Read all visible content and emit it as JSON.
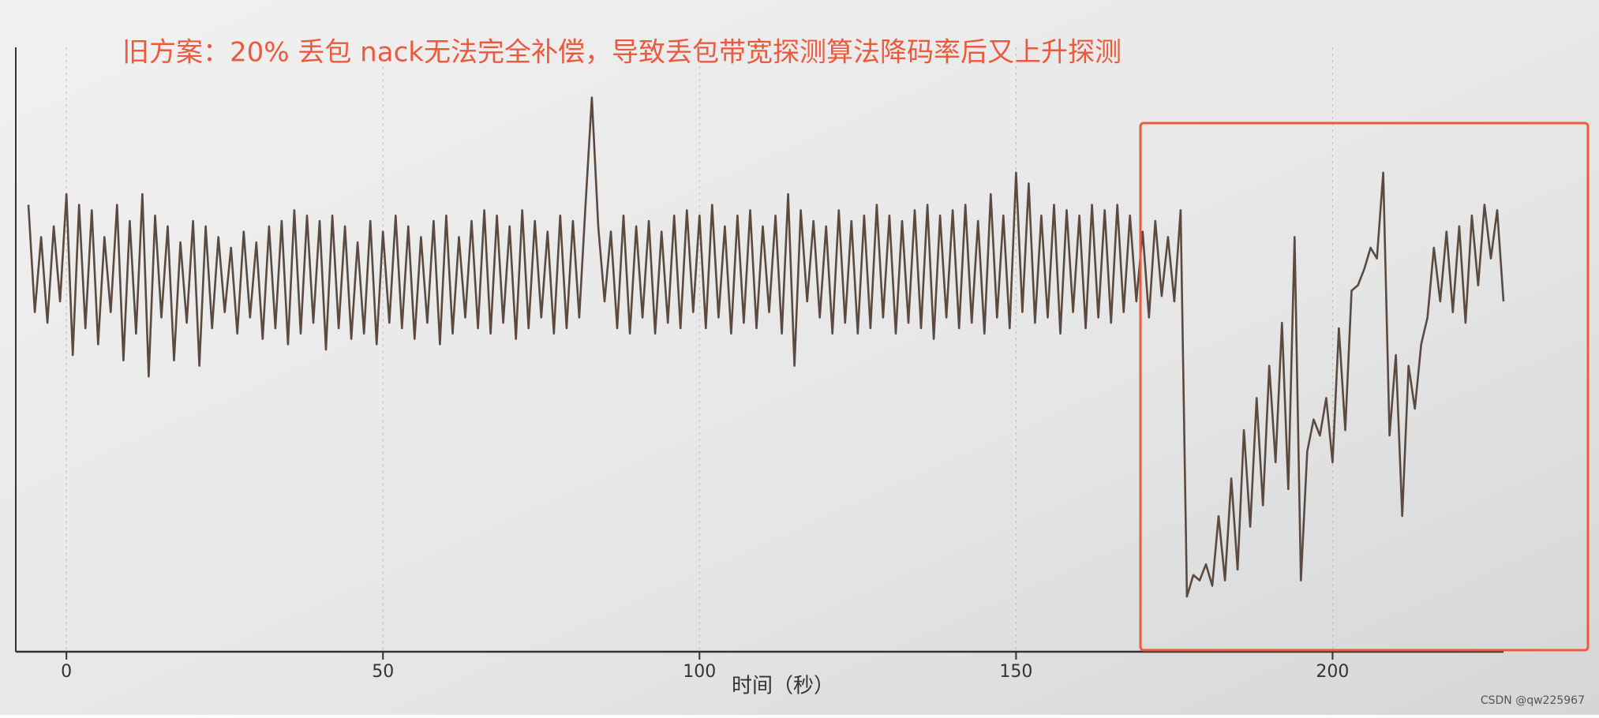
{
  "chart_data": {
    "type": "line",
    "annotation": "旧方案：20% 丢包 nack无法完全补偿，导致丢包带宽探测算法降码率后又上升探测",
    "xlabel": "时间（秒）",
    "watermark": "CSDN @qw225967",
    "xlim": [
      -8,
      227
    ],
    "xticks": [
      0,
      50,
      100,
      150,
      200
    ],
    "ylim": [
      0,
      100
    ],
    "grid": true,
    "series": [
      {
        "color": "#5a4a40",
        "x": [
          -6,
          -5,
          -4,
          -3,
          -2,
          -1,
          0,
          1,
          2,
          3,
          4,
          5,
          6,
          7,
          8,
          9,
          10,
          11,
          12,
          13,
          14,
          15,
          16,
          17,
          18,
          19,
          20,
          21,
          22,
          23,
          24,
          25,
          26,
          27,
          28,
          29,
          30,
          31,
          32,
          33,
          34,
          35,
          36,
          37,
          38,
          39,
          40,
          41,
          42,
          43,
          44,
          45,
          46,
          47,
          48,
          49,
          50,
          51,
          52,
          53,
          54,
          55,
          56,
          57,
          58,
          59,
          60,
          61,
          62,
          63,
          64,
          65,
          66,
          67,
          68,
          69,
          70,
          71,
          72,
          73,
          74,
          75,
          76,
          77,
          78,
          79,
          80,
          81,
          82,
          83,
          84,
          85,
          86,
          87,
          88,
          89,
          90,
          91,
          92,
          93,
          94,
          95,
          96,
          97,
          98,
          99,
          100,
          101,
          102,
          103,
          104,
          105,
          106,
          107,
          108,
          109,
          110,
          111,
          112,
          113,
          114,
          115,
          116,
          117,
          118,
          119,
          120,
          121,
          122,
          123,
          124,
          125,
          126,
          127,
          128,
          129,
          130,
          131,
          132,
          133,
          134,
          135,
          136,
          137,
          138,
          139,
          140,
          141,
          142,
          143,
          144,
          145,
          146,
          147,
          148,
          149,
          150,
          151,
          152,
          153,
          154,
          155,
          156,
          157,
          158,
          159,
          160,
          161,
          162,
          163,
          164,
          165,
          166,
          167,
          168,
          169,
          170,
          171,
          172,
          173,
          174,
          175,
          176,
          177,
          178,
          179,
          180,
          181,
          182,
          183,
          184,
          185,
          186,
          187,
          188,
          189,
          190,
          191,
          192,
          193,
          194,
          195,
          196,
          197,
          198,
          199,
          200,
          201,
          202,
          203,
          204,
          205,
          206,
          207,
          208,
          209,
          210,
          211,
          212,
          213,
          214,
          215,
          216,
          217,
          218,
          219,
          220,
          221,
          222,
          223,
          224,
          225,
          226,
          227
        ],
        "values": [
          78,
          58,
          72,
          56,
          74,
          60,
          80,
          50,
          78,
          55,
          77,
          52,
          72,
          58,
          78,
          49,
          75,
          54,
          80,
          46,
          76,
          57,
          74,
          49,
          71,
          56,
          75,
          48,
          74,
          55,
          72,
          58,
          70,
          54,
          73,
          57,
          71,
          53,
          74,
          55,
          75,
          52,
          77,
          54,
          76,
          56,
          75,
          51,
          76,
          55,
          74,
          53,
          71,
          54,
          75,
          52,
          73,
          56,
          76,
          55,
          74,
          53,
          72,
          56,
          75,
          52,
          76,
          54,
          72,
          57,
          75,
          55,
          77,
          54,
          76,
          56,
          74,
          53,
          77,
          55,
          75,
          57,
          73,
          54,
          76,
          55,
          75,
          57,
          78,
          98,
          74,
          60,
          73,
          55,
          76,
          54,
          74,
          57,
          75,
          54,
          73,
          56,
          76,
          55,
          77,
          58,
          76,
          55,
          78,
          57,
          74,
          54,
          76,
          56,
          77,
          55,
          74,
          58,
          76,
          54,
          80,
          48,
          77,
          60,
          75,
          57,
          74,
          54,
          77,
          56,
          75,
          54,
          76,
          55,
          78,
          57,
          76,
          54,
          75,
          56,
          77,
          55,
          78,
          53,
          76,
          57,
          77,
          55,
          78,
          56,
          75,
          54,
          80,
          57,
          76,
          55,
          84,
          58,
          82,
          56,
          76,
          57,
          78,
          54,
          77,
          58,
          76,
          55,
          78,
          57,
          77,
          56,
          78,
          58,
          76,
          60,
          73,
          57,
          75,
          61,
          72,
          60,
          77,
          5,
          9,
          8,
          11,
          7,
          20,
          8,
          27,
          10,
          36,
          18,
          42,
          22,
          48,
          30,
          56,
          25,
          72,
          8,
          32,
          38,
          35,
          42,
          30,
          55,
          36,
          62,
          63,
          66,
          70,
          68,
          84,
          35,
          50,
          20,
          48,
          40,
          52,
          57,
          70,
          60,
          73,
          58,
          74,
          56,
          76,
          63,
          78,
          68,
          77,
          60
        ]
      }
    ]
  }
}
